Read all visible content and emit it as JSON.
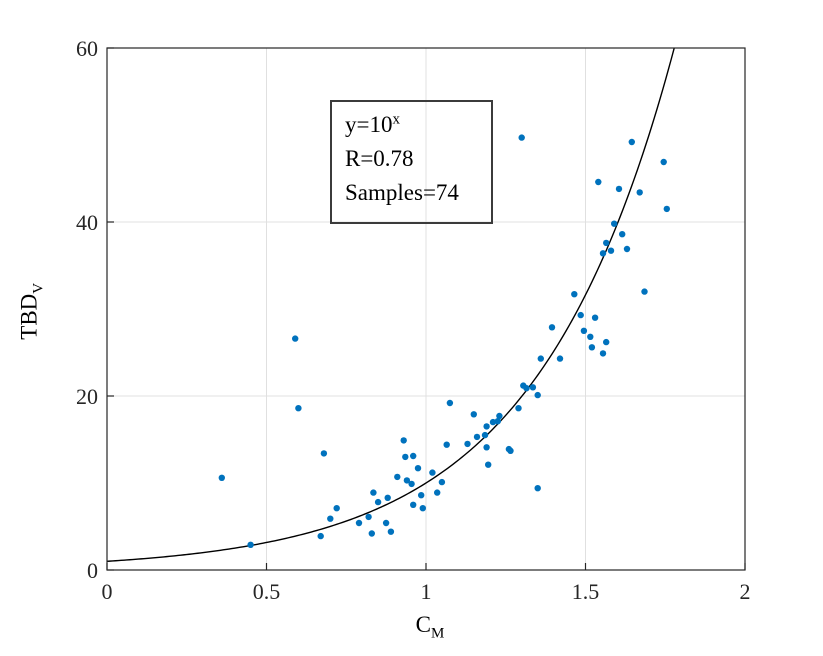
{
  "figure": {
    "background": "#ffffff",
    "axis_color": "#262626",
    "grid_color": "#e0e0e0",
    "annotation": {
      "line1_base": "y=10",
      "line1_sup": "x",
      "line2": "R=0.78",
      "line3": "Samples=74"
    },
    "x_axis": {
      "label_base": "C",
      "label_sub": "M",
      "tick_values": [
        0,
        0.5,
        1,
        1.5,
        2
      ],
      "tick_labels": [
        "0",
        "0.5",
        "1",
        "1.5",
        "2"
      ]
    },
    "y_axis": {
      "label_base": "TBD",
      "label_sub": "V",
      "tick_values": [
        0,
        20,
        40,
        60
      ],
      "tick_labels": [
        "0",
        "20",
        "40",
        "60"
      ]
    }
  },
  "chart_data": {
    "type": "scatter",
    "title": "",
    "xlabel": "C_M",
    "ylabel": "TBD_V",
    "xlim": [
      0,
      2
    ],
    "ylim": [
      0,
      60
    ],
    "grid": true,
    "legend": "none",
    "marker_color": "#0072BD",
    "marker_radius": 3.2,
    "fit_curve": {
      "formula": "y=10^x",
      "color": "#000000",
      "x_start": 0,
      "x_end": 1.778
    },
    "annotation_text": [
      "y=10^x",
      "R=0.78",
      "Samples=74"
    ],
    "points": [
      [
        0.36,
        10.6
      ],
      [
        0.45,
        2.9
      ],
      [
        0.59,
        26.6
      ],
      [
        0.6,
        18.6
      ],
      [
        0.67,
        3.9
      ],
      [
        0.68,
        13.4
      ],
      [
        0.7,
        5.9
      ],
      [
        0.72,
        7.1
      ],
      [
        0.79,
        5.4
      ],
      [
        0.82,
        6.1
      ],
      [
        0.83,
        4.2
      ],
      [
        0.835,
        8.9
      ],
      [
        0.85,
        7.8
      ],
      [
        0.875,
        5.4
      ],
      [
        0.88,
        8.3
      ],
      [
        0.89,
        4.4
      ],
      [
        0.91,
        10.7
      ],
      [
        0.93,
        14.9
      ],
      [
        0.935,
        13.0
      ],
      [
        0.94,
        10.3
      ],
      [
        0.955,
        9.9
      ],
      [
        0.96,
        13.1
      ],
      [
        0.96,
        7.5
      ],
      [
        0.975,
        11.7
      ],
      [
        0.985,
        8.6
      ],
      [
        0.99,
        7.1
      ],
      [
        1.02,
        11.2
      ],
      [
        1.035,
        8.9
      ],
      [
        1.05,
        10.1
      ],
      [
        1.065,
        14.4
      ],
      [
        1.075,
        19.2
      ],
      [
        1.13,
        14.5
      ],
      [
        1.15,
        17.9
      ],
      [
        1.16,
        15.3
      ],
      [
        1.185,
        15.5
      ],
      [
        1.19,
        14.1
      ],
      [
        1.19,
        16.5
      ],
      [
        1.195,
        12.1
      ],
      [
        1.21,
        17.0
      ],
      [
        1.225,
        17.1
      ],
      [
        1.23,
        17.7
      ],
      [
        1.26,
        13.9
      ],
      [
        1.265,
        13.7
      ],
      [
        1.29,
        18.6
      ],
      [
        1.3,
        49.7
      ],
      [
        1.305,
        21.2
      ],
      [
        1.315,
        20.9
      ],
      [
        1.335,
        21.0
      ],
      [
        1.35,
        9.4
      ],
      [
        1.35,
        20.1
      ],
      [
        1.36,
        24.3
      ],
      [
        1.395,
        27.9
      ],
      [
        1.42,
        24.3
      ],
      [
        1.465,
        31.7
      ],
      [
        1.485,
        29.3
      ],
      [
        1.495,
        27.5
      ],
      [
        1.515,
        26.8
      ],
      [
        1.52,
        25.6
      ],
      [
        1.53,
        29.0
      ],
      [
        1.54,
        44.6
      ],
      [
        1.555,
        36.4
      ],
      [
        1.555,
        24.9
      ],
      [
        1.565,
        37.6
      ],
      [
        1.565,
        26.2
      ],
      [
        1.58,
        36.7
      ],
      [
        1.59,
        39.8
      ],
      [
        1.605,
        43.8
      ],
      [
        1.615,
        38.6
      ],
      [
        1.63,
        36.9
      ],
      [
        1.645,
        49.2
      ],
      [
        1.67,
        43.4
      ],
      [
        1.685,
        32.0
      ],
      [
        1.745,
        46.9
      ],
      [
        1.755,
        41.5
      ]
    ]
  }
}
